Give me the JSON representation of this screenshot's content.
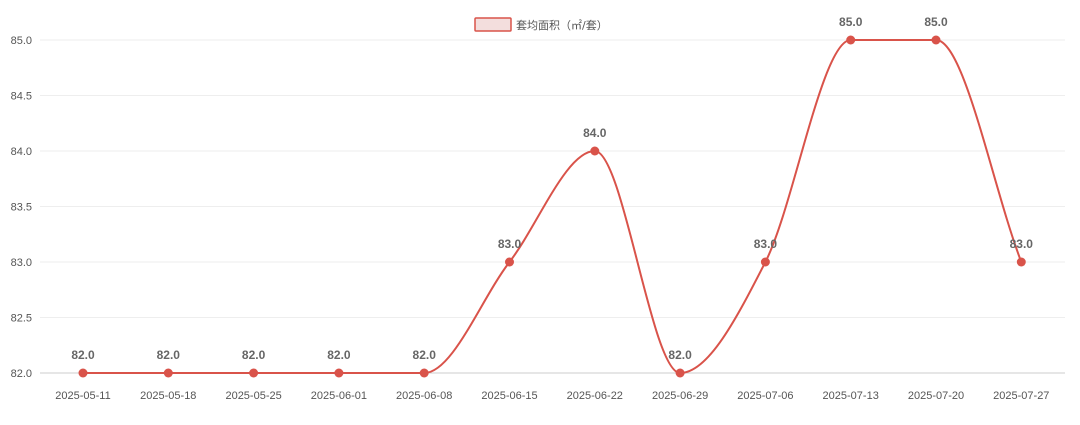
{
  "chart_data": {
    "type": "line",
    "categories": [
      "2025-05-11",
      "2025-05-18",
      "2025-05-25",
      "2025-06-01",
      "2025-06-08",
      "2025-06-15",
      "2025-06-22",
      "2025-06-29",
      "2025-07-06",
      "2025-07-13",
      "2025-07-20",
      "2025-07-27"
    ],
    "series": [
      {
        "name": "套均面积（㎡/套）",
        "values": [
          82.0,
          82.0,
          82.0,
          82.0,
          82.0,
          83.0,
          84.0,
          82.0,
          83.0,
          85.0,
          85.0,
          83.0
        ],
        "labels": [
          "82.0",
          "82.0",
          "82.0",
          "82.0",
          "82.0",
          "83.0",
          "84.0",
          "82.0",
          "83.0",
          "85.0",
          "85.0",
          "83.0"
        ],
        "color": "#d9534a",
        "legend_fill": "#f3dedd"
      }
    ],
    "yticks": [
      "82.0",
      "82.5",
      "83.0",
      "83.5",
      "84.0",
      "84.5",
      "85.0"
    ],
    "ylim": [
      82.0,
      85.0
    ],
    "grid": true,
    "legend_position": "top-center",
    "smooth": true,
    "title": "",
    "xlabel": "",
    "ylabel": ""
  }
}
